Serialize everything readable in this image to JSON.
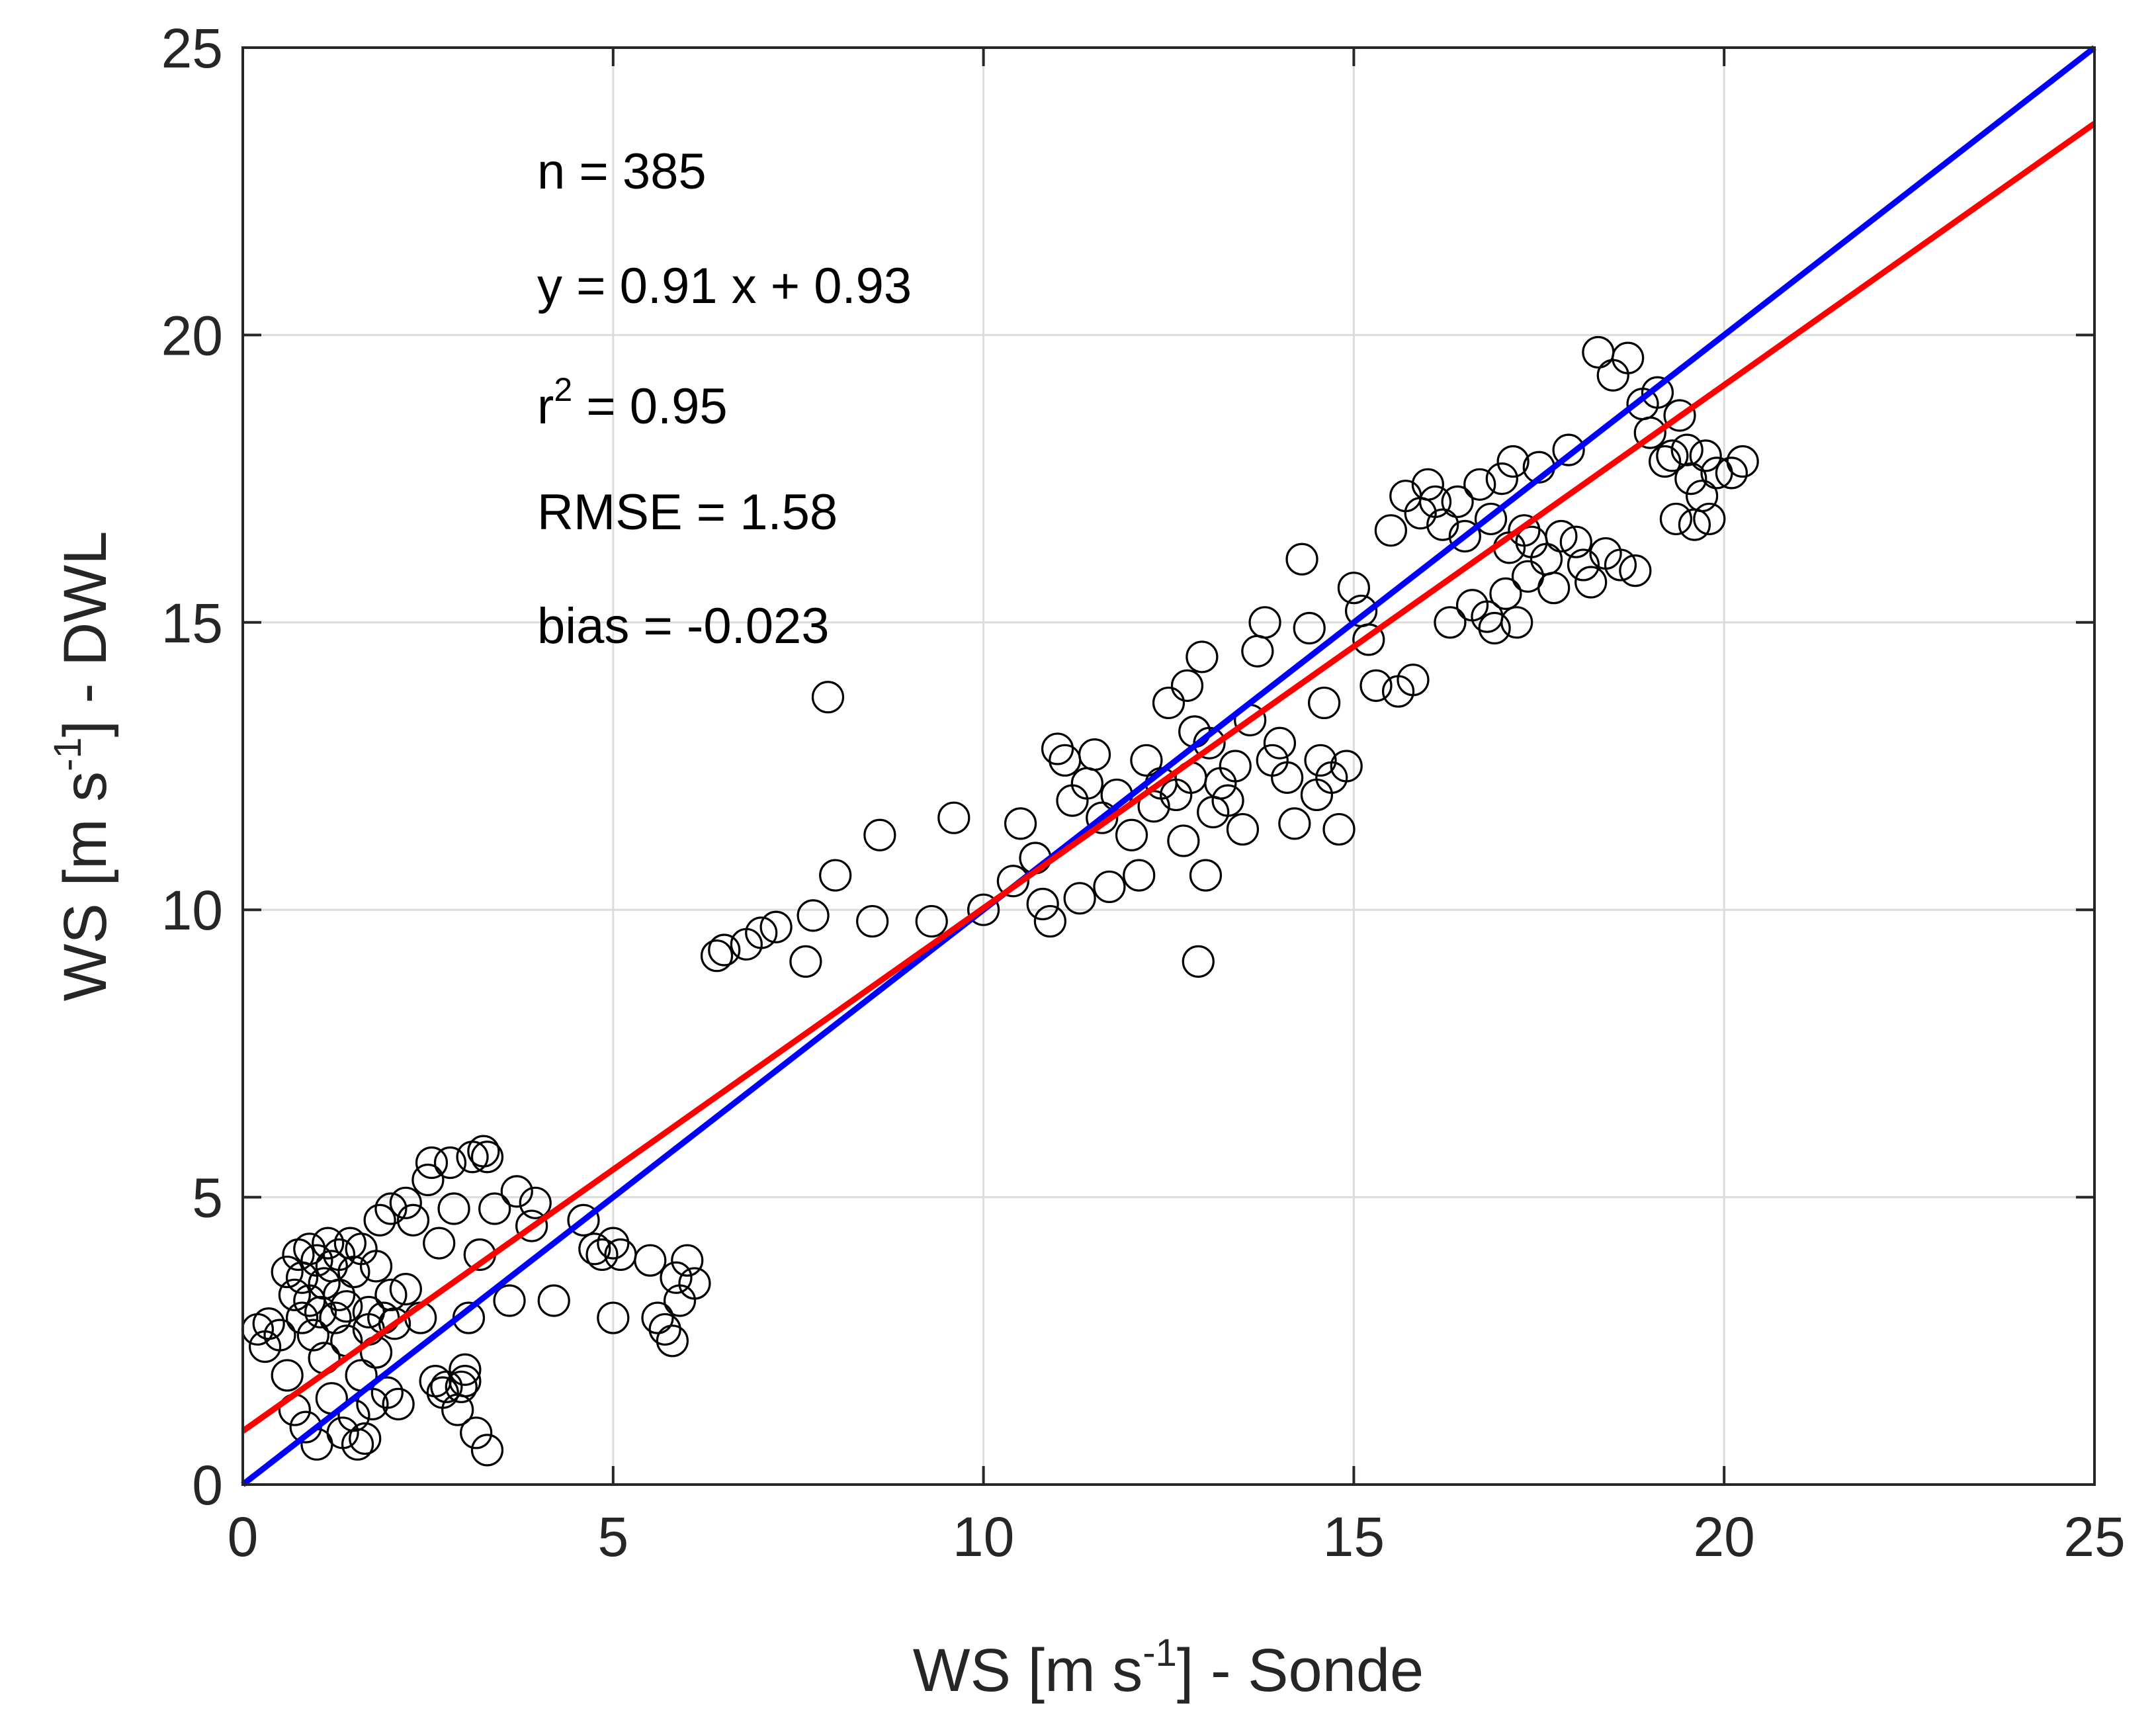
{
  "chart_data": {
    "type": "scatter",
    "xlabel": {
      "main": "WS [m s",
      "sup": "-1",
      "tail": "] - Sonde"
    },
    "ylabel": {
      "main": "WS [m s",
      "sup": "-1",
      "tail": "] - DWL"
    },
    "xlim": [
      0,
      25
    ],
    "ylim": [
      0,
      25
    ],
    "xticks": [
      0,
      5,
      10,
      15,
      20,
      25
    ],
    "yticks": [
      0,
      5,
      10,
      15,
      20,
      25
    ],
    "xtick_labels": [
      "0",
      "5",
      "10",
      "15",
      "20",
      "25"
    ],
    "ytick_labels": [
      "0",
      "5",
      "10",
      "15",
      "20",
      "25"
    ],
    "grid": true,
    "annotations": {
      "n": "n = 385",
      "equation": "y = 0.91 x + 0.93",
      "r2_prefix": "r",
      "r2_sup": "2",
      "r2_value": " = 0.95",
      "rmse": "RMSE = 1.58",
      "bias": "bias = -0.023"
    },
    "lines": [
      {
        "name": "one-to-one",
        "color": "#0000ff",
        "x": [
          0,
          25
        ],
        "y": [
          0,
          25
        ]
      },
      {
        "name": "regression",
        "color": "#ff0000",
        "slope": 0.91,
        "intercept": 0.93,
        "x": [
          0,
          25
        ]
      }
    ],
    "marker_color": "#000000",
    "points": [
      [
        0.2,
        2.7
      ],
      [
        0.3,
        2.4
      ],
      [
        0.35,
        2.8
      ],
      [
        0.5,
        2.6
      ],
      [
        0.6,
        1.9
      ],
      [
        0.6,
        3.7
      ],
      [
        0.7,
        3.3
      ],
      [
        0.7,
        1.3
      ],
      [
        0.75,
        4.0
      ],
      [
        0.8,
        2.9
      ],
      [
        0.8,
        3.6
      ],
      [
        0.85,
        1.0
      ],
      [
        0.9,
        4.1
      ],
      [
        0.9,
        3.2
      ],
      [
        0.95,
        2.6
      ],
      [
        1.0,
        0.7
      ],
      [
        1.0,
        3.9
      ],
      [
        1.05,
        3.0
      ],
      [
        1.1,
        3.5
      ],
      [
        1.1,
        2.2
      ],
      [
        1.15,
        4.2
      ],
      [
        1.2,
        3.8
      ],
      [
        1.2,
        1.5
      ],
      [
        1.25,
        2.9
      ],
      [
        1.3,
        4.0
      ],
      [
        1.3,
        3.3
      ],
      [
        1.35,
        0.9
      ],
      [
        1.4,
        3.1
      ],
      [
        1.4,
        2.5
      ],
      [
        1.45,
        4.2
      ],
      [
        1.5,
        1.2
      ],
      [
        1.5,
        3.7
      ],
      [
        1.55,
        0.7
      ],
      [
        1.6,
        4.1
      ],
      [
        1.6,
        1.9
      ],
      [
        1.65,
        0.8
      ],
      [
        1.7,
        2.7
      ],
      [
        1.7,
        3.0
      ],
      [
        1.75,
        1.4
      ],
      [
        1.8,
        3.8
      ],
      [
        1.8,
        2.3
      ],
      [
        1.85,
        4.6
      ],
      [
        1.9,
        2.9
      ],
      [
        1.95,
        1.6
      ],
      [
        2.0,
        4.8
      ],
      [
        2.0,
        3.3
      ],
      [
        2.05,
        2.8
      ],
      [
        2.1,
        1.4
      ],
      [
        2.2,
        3.4
      ],
      [
        2.2,
        4.9
      ],
      [
        2.3,
        4.6
      ],
      [
        2.4,
        2.9
      ],
      [
        2.5,
        5.3
      ],
      [
        2.55,
        5.6
      ],
      [
        2.6,
        1.8
      ],
      [
        2.65,
        4.2
      ],
      [
        2.7,
        1.6
      ],
      [
        2.75,
        1.7
      ],
      [
        2.8,
        5.6
      ],
      [
        2.85,
        4.8
      ],
      [
        2.9,
        1.3
      ],
      [
        2.95,
        1.7
      ],
      [
        3.0,
        1.8
      ],
      [
        3.0,
        2.0
      ],
      [
        3.05,
        2.9
      ],
      [
        3.1,
        5.7
      ],
      [
        3.15,
        0.9
      ],
      [
        3.2,
        4.0
      ],
      [
        3.25,
        5.8
      ],
      [
        3.3,
        5.7
      ],
      [
        3.3,
        0.6
      ],
      [
        3.4,
        4.8
      ],
      [
        3.6,
        3.2
      ],
      [
        3.7,
        5.1
      ],
      [
        3.9,
        4.5
      ],
      [
        3.95,
        4.9
      ],
      [
        4.2,
        3.2
      ],
      [
        4.6,
        4.6
      ],
      [
        4.75,
        4.1
      ],
      [
        4.85,
        4.0
      ],
      [
        5.0,
        4.2
      ],
      [
        5.0,
        2.9
      ],
      [
        5.1,
        4.0
      ],
      [
        5.5,
        3.9
      ],
      [
        5.6,
        2.9
      ],
      [
        5.7,
        2.7
      ],
      [
        5.8,
        2.5
      ],
      [
        5.85,
        3.6
      ],
      [
        5.9,
        3.2
      ],
      [
        6.0,
        3.9
      ],
      [
        6.1,
        3.5
      ],
      [
        6.4,
        9.2
      ],
      [
        6.5,
        9.3
      ],
      [
        6.8,
        9.4
      ],
      [
        7.0,
        9.6
      ],
      [
        7.2,
        9.7
      ],
      [
        7.6,
        9.1
      ],
      [
        7.7,
        9.9
      ],
      [
        7.9,
        13.7
      ],
      [
        8.0,
        10.6
      ],
      [
        8.5,
        9.8
      ],
      [
        8.6,
        11.3
      ],
      [
        9.3,
        9.8
      ],
      [
        9.6,
        11.6
      ],
      [
        10.0,
        10.0
      ],
      [
        10.4,
        10.5
      ],
      [
        10.5,
        11.5
      ],
      [
        10.7,
        10.9
      ],
      [
        10.8,
        10.1
      ],
      [
        10.9,
        9.8
      ],
      [
        11.0,
        12.8
      ],
      [
        11.1,
        12.6
      ],
      [
        11.2,
        11.9
      ],
      [
        11.3,
        10.2
      ],
      [
        11.4,
        12.2
      ],
      [
        11.5,
        12.7
      ],
      [
        11.6,
        11.6
      ],
      [
        11.7,
        10.4
      ],
      [
        11.8,
        12.0
      ],
      [
        12.0,
        11.3
      ],
      [
        12.1,
        10.6
      ],
      [
        12.2,
        12.6
      ],
      [
        12.3,
        11.8
      ],
      [
        12.4,
        12.2
      ],
      [
        12.5,
        13.6
      ],
      [
        12.6,
        12.0
      ],
      [
        12.7,
        11.2
      ],
      [
        12.75,
        13.9
      ],
      [
        12.8,
        12.3
      ],
      [
        12.85,
        13.1
      ],
      [
        12.9,
        9.1
      ],
      [
        12.95,
        14.4
      ],
      [
        13.0,
        10.6
      ],
      [
        13.05,
        12.9
      ],
      [
        13.1,
        11.7
      ],
      [
        13.2,
        12.2
      ],
      [
        13.3,
        11.9
      ],
      [
        13.4,
        12.5
      ],
      [
        13.5,
        11.4
      ],
      [
        13.6,
        13.3
      ],
      [
        13.7,
        14.5
      ],
      [
        13.8,
        15.0
      ],
      [
        13.9,
        12.6
      ],
      [
        14.0,
        12.9
      ],
      [
        14.1,
        12.3
      ],
      [
        14.2,
        11.5
      ],
      [
        14.3,
        16.1
      ],
      [
        14.4,
        14.9
      ],
      [
        14.5,
        12.0
      ],
      [
        14.55,
        12.6
      ],
      [
        14.6,
        13.6
      ],
      [
        14.7,
        12.3
      ],
      [
        14.8,
        11.4
      ],
      [
        14.9,
        12.5
      ],
      [
        15.0,
        15.6
      ],
      [
        15.1,
        15.2
      ],
      [
        15.2,
        14.7
      ],
      [
        15.3,
        13.9
      ],
      [
        15.5,
        16.6
      ],
      [
        15.6,
        13.8
      ],
      [
        15.7,
        17.2
      ],
      [
        15.8,
        14.0
      ],
      [
        15.9,
        16.9
      ],
      [
        16.0,
        17.4
      ],
      [
        16.1,
        17.1
      ],
      [
        16.2,
        16.7
      ],
      [
        16.3,
        15.0
      ],
      [
        16.4,
        17.1
      ],
      [
        16.5,
        16.5
      ],
      [
        16.6,
        15.3
      ],
      [
        16.7,
        17.4
      ],
      [
        16.8,
        15.1
      ],
      [
        16.85,
        16.8
      ],
      [
        16.9,
        14.9
      ],
      [
        17.0,
        17.5
      ],
      [
        17.05,
        15.5
      ],
      [
        17.1,
        16.3
      ],
      [
        17.15,
        17.8
      ],
      [
        17.2,
        15.0
      ],
      [
        17.3,
        16.6
      ],
      [
        17.35,
        15.8
      ],
      [
        17.4,
        16.4
      ],
      [
        17.5,
        17.7
      ],
      [
        17.6,
        16.1
      ],
      [
        17.7,
        15.6
      ],
      [
        17.8,
        16.5
      ],
      [
        17.9,
        18.0
      ],
      [
        18.0,
        16.4
      ],
      [
        18.1,
        16.0
      ],
      [
        18.2,
        15.7
      ],
      [
        18.3,
        19.7
      ],
      [
        18.4,
        16.2
      ],
      [
        18.5,
        19.3
      ],
      [
        18.6,
        16.0
      ],
      [
        18.7,
        19.6
      ],
      [
        18.8,
        15.9
      ],
      [
        18.9,
        18.8
      ],
      [
        19.0,
        18.3
      ],
      [
        19.1,
        19.0
      ],
      [
        19.2,
        17.8
      ],
      [
        19.3,
        17.9
      ],
      [
        19.35,
        16.8
      ],
      [
        19.4,
        18.6
      ],
      [
        19.5,
        18.0
      ],
      [
        19.55,
        17.5
      ],
      [
        19.6,
        16.7
      ],
      [
        19.7,
        17.2
      ],
      [
        19.75,
        17.9
      ],
      [
        19.8,
        16.8
      ],
      [
        19.9,
        17.6
      ],
      [
        20.1,
        17.6
      ],
      [
        20.25,
        17.8
      ]
    ]
  }
}
